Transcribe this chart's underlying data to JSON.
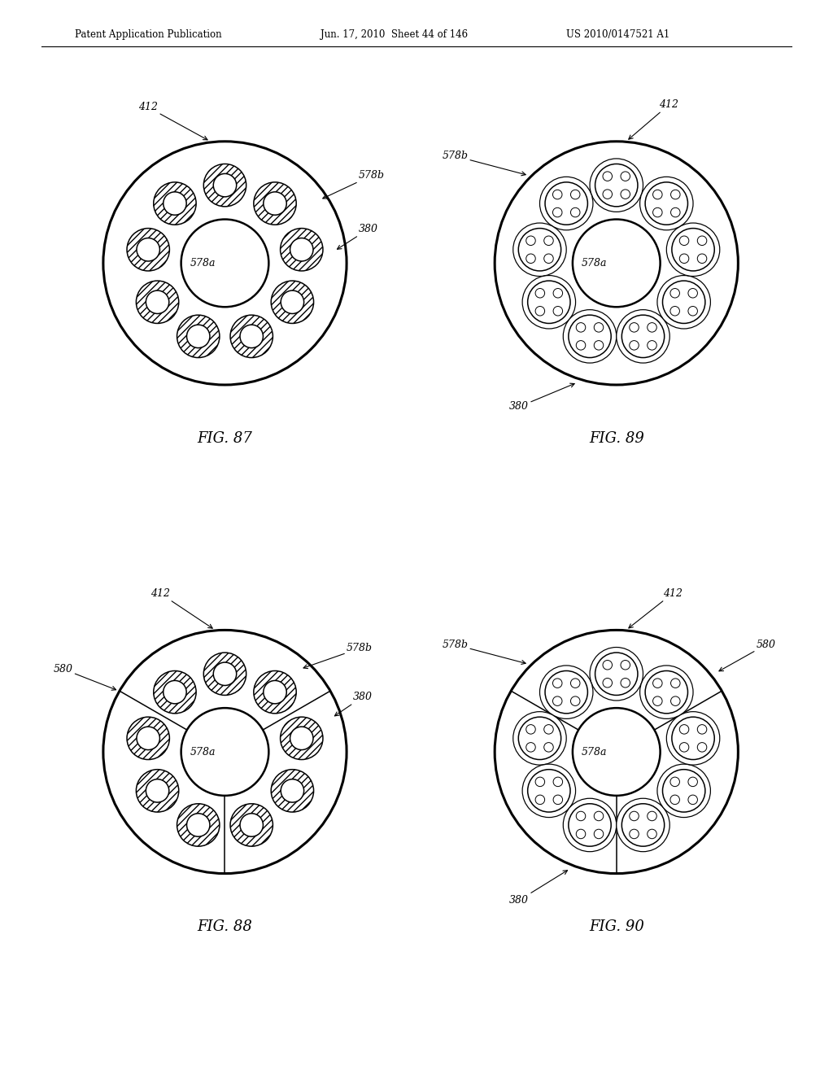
{
  "header_left": "Patent Application Publication",
  "header_mid": "Jun. 17, 2010  Sheet 44 of 146",
  "header_right": "US 2010/0147521 A1",
  "header_fontsize": 8.5,
  "fig87_caption": "FIG. 87",
  "fig88_caption": "FIG. 88",
  "fig89_caption": "FIG. 89",
  "fig90_caption": "FIG. 90",
  "caption_fontsize": 13,
  "label_fontsize": 9,
  "outer_r": 1.0,
  "center_r": 0.36,
  "orbit_r": 0.64,
  "tube_r": 0.175,
  "tube_inner_r": 0.095,
  "n_tubes": 9,
  "segment_angles_deg": [
    120,
    240,
    360
  ],
  "background_color": "#ffffff",
  "line_color": "#000000"
}
